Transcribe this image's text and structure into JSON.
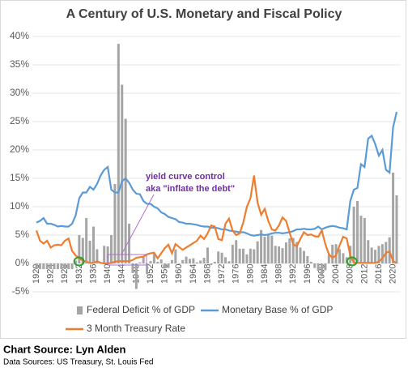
{
  "chart_data": {
    "type": "combo",
    "title": "A Century of U.S. Monetary and Fiscal Policy",
    "categories": [
      "1920",
      null,
      null,
      null,
      "1924",
      null,
      null,
      null,
      "1928",
      null,
      null,
      null,
      "1932",
      null,
      null,
      null,
      "1936",
      null,
      null,
      null,
      "1940",
      null,
      null,
      null,
      "1944",
      null,
      null,
      null,
      "1948",
      null,
      null,
      null,
      "1952",
      null,
      null,
      null,
      "1956",
      null,
      null,
      null,
      "1960",
      null,
      null,
      null,
      "1964",
      null,
      null,
      null,
      "1968",
      null,
      null,
      null,
      "1972",
      null,
      null,
      null,
      "1976",
      null,
      null,
      null,
      "1980",
      null,
      null,
      null,
      "1984",
      null,
      null,
      null,
      "1988",
      null,
      null,
      null,
      "1992",
      null,
      null,
      null,
      "1996",
      null,
      null,
      null,
      "2000",
      null,
      null,
      null,
      "2004",
      null,
      null,
      null,
      "2008",
      null,
      null,
      null,
      "2012",
      null,
      null,
      null,
      "2016",
      null,
      null,
      null,
      "2020",
      null
    ],
    "series": [
      {
        "name": "Federal Deficit % of GDP",
        "kind": "bar",
        "color": "#a5a5a5",
        "values": [
          -1,
          -1,
          -1,
          -1,
          -1,
          -1,
          -1,
          -1,
          -1,
          -1,
          -1,
          0.5,
          5,
          4.5,
          8,
          4,
          6.5,
          2.5,
          0.1,
          3.1,
          3,
          5,
          14,
          38.7,
          31.5,
          25.5,
          7,
          -1.7,
          -4.5,
          0.2,
          1.1,
          -1.9,
          0.4,
          1.7,
          0.3,
          0.7,
          -0.9,
          -0.8,
          0.6,
          2.5,
          -0.1,
          0.6,
          1.2,
          0.8,
          0.9,
          0.2,
          0.5,
          1,
          2.8,
          -0.3,
          0.3,
          2.1,
          1.9,
          1.1,
          0.4,
          3.3,
          4.1,
          2.6,
          2.6,
          1.6,
          2.6,
          2.5,
          3.9,
          5.9,
          4.7,
          5,
          4.9,
          3.1,
          3,
          2.7,
          3.7,
          4.4,
          4.5,
          3.8,
          2.8,
          2.2,
          1.3,
          0.3,
          -0.8,
          -1.3,
          -2.3,
          -1.2,
          1.5,
          3.3,
          3.4,
          2.5,
          1.8,
          1.1,
          3.1,
          10,
          11,
          8.4,
          8,
          4.1,
          2.8,
          2.4,
          3.1,
          3.4,
          3.8,
          4.6,
          16,
          12
        ]
      },
      {
        "name": "Monetary Base % of GDP",
        "kind": "line",
        "color": "#5b9bd5",
        "values": [
          7.2,
          7.5,
          8,
          7,
          7,
          6.8,
          6.5,
          6.6,
          6.5,
          6.5,
          7,
          8.5,
          11.5,
          12.5,
          12.5,
          13.5,
          13,
          14,
          15.5,
          16.5,
          17,
          13,
          12.5,
          12.5,
          14.5,
          15,
          14.2,
          13,
          12.3,
          12.2,
          11,
          10.5,
          10.5,
          10,
          9.7,
          9,
          8.7,
          8.2,
          8,
          7.8,
          7.3,
          7.2,
          7,
          7,
          6.9,
          6.8,
          6.6,
          6.5,
          6.5,
          6.3,
          6.3,
          6.2,
          6,
          6,
          5.8,
          5.7,
          5.6,
          5.5,
          5.5,
          5.3,
          5,
          4.9,
          5,
          5.1,
          5,
          5.1,
          5.3,
          5.4,
          5.4,
          5.3,
          5.4,
          5.5,
          5.7,
          6,
          6,
          6.1,
          6,
          6,
          6.1,
          6.5,
          6,
          6.3,
          6.5,
          6.6,
          6.5,
          6.3,
          6.2,
          6,
          11,
          13,
          13.3,
          17.5,
          17,
          22,
          22.5,
          21,
          19,
          20,
          16.5,
          16,
          24,
          26.7
        ]
      },
      {
        "name": "3 Month Treasury Rate",
        "kind": "line",
        "color": "#ed7d31",
        "values": [
          5.8,
          4,
          3.5,
          4,
          2.8,
          3.2,
          3.3,
          3.2,
          4,
          4.4,
          2.2,
          1.4,
          0.9,
          0.5,
          0.3,
          0.1,
          0.1,
          0.4,
          0.1,
          0,
          0,
          0.1,
          0.3,
          0.4,
          0.4,
          0.4,
          0.4,
          0.6,
          1,
          1.1,
          1.2,
          1.6,
          1.8,
          1.9,
          0.9,
          1.8,
          2.7,
          3.3,
          1.8,
          3.4,
          2.9,
          2.4,
          2.8,
          3.2,
          3.6,
          4,
          4.9,
          4.3,
          5.3,
          6.7,
          6.5,
          4.3,
          4.1,
          7,
          7.9,
          5.8,
          5,
          5.3,
          7.2,
          10,
          11.5,
          15.5,
          10.7,
          8.6,
          9.6,
          7.5,
          6,
          5.8,
          6.7,
          8.1,
          7.5,
          5.4,
          3.4,
          3,
          4.3,
          5.5,
          5,
          5.1,
          4.8,
          4.7,
          5.8,
          3.4,
          1.6,
          1,
          1.4,
          3.2,
          4.7,
          4.4,
          1.4,
          0.15,
          0.1,
          0.1,
          0.1,
          0.1,
          0.1,
          0.1,
          0.3,
          0.9,
          1.9,
          2.1,
          0.4,
          0.05
        ]
      }
    ],
    "ylim": [
      -5,
      40
    ],
    "yticks": [
      {
        "value": -5,
        "label": "-5%"
      },
      {
        "value": 0,
        "label": "0%"
      },
      {
        "value": 5,
        "label": "5%"
      },
      {
        "value": 10,
        "label": "10%"
      },
      {
        "value": 15,
        "label": "15%"
      },
      {
        "value": 20,
        "label": "20%"
      },
      {
        "value": 25,
        "label": "25%"
      },
      {
        "value": 30,
        "label": "30%"
      },
      {
        "value": 35,
        "label": "35%"
      },
      {
        "value": 40,
        "label": "40%"
      }
    ],
    "grid": true,
    "legend": "bottom",
    "annotation": [
      "yield curve control",
      "aka \"inflate the debt\""
    ],
    "source": "Chart Source: Lyn Alden",
    "data_sources": "Data Sources: US Treasury, St. Louis Fed"
  }
}
